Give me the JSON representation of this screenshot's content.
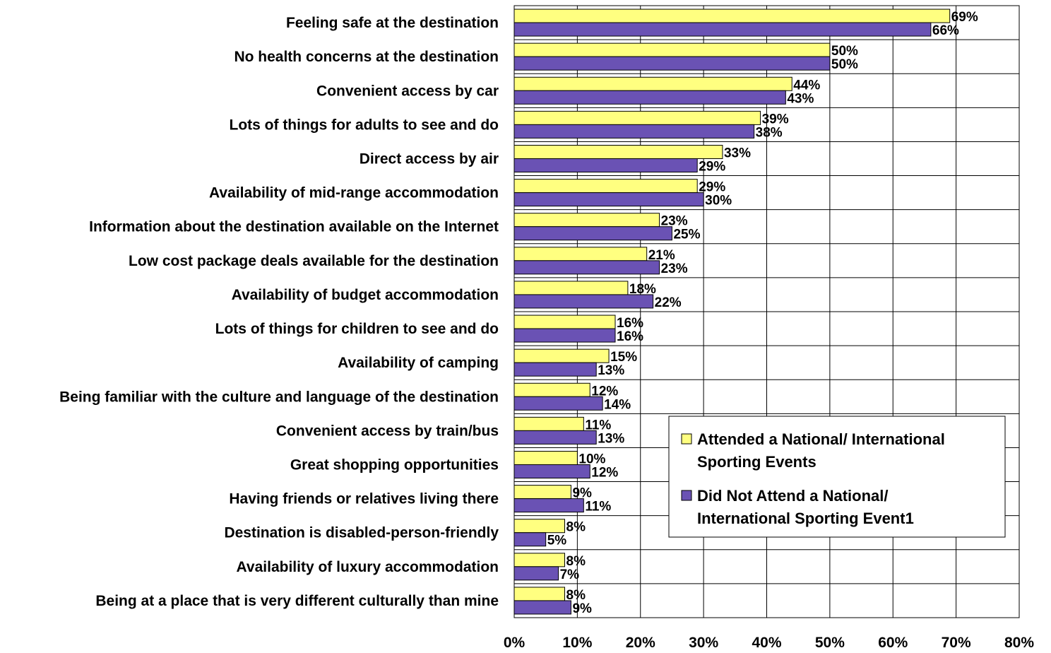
{
  "chart_data": {
    "type": "bar",
    "orientation": "horizontal",
    "title": "",
    "xlabel": "",
    "ylabel": "",
    "xlim": [
      0,
      80
    ],
    "x_ticks": [
      "0%",
      "10%",
      "20%",
      "30%",
      "40%",
      "50%",
      "60%",
      "70%",
      "80%"
    ],
    "grid": true,
    "legend_position": "lower-right",
    "categories": [
      "Feeling safe at the destination",
      "No health concerns at the destination",
      "Convenient access by car",
      "Lots of things for adults to see and do",
      "Direct access by air",
      "Availability of mid-range accommodation",
      "Information about the destination available on the Internet",
      "Low cost package deals available for the destination",
      "Availability of budget accommodation",
      "Lots of things for children to see and do",
      "Availability of camping",
      "Being familiar with the culture and language of the destination",
      "Convenient access by train/bus",
      "Great shopping opportunities",
      "Having friends or relatives living there",
      "Destination is disabled-person-friendly",
      "Availability of luxury accommodation",
      "Being at a place that is very different culturally than mine"
    ],
    "series": [
      {
        "name": "Attended a National/ International Sporting Events",
        "legend_lines": [
          "Attended a National/ International",
          "Sporting Events"
        ],
        "color": "#FFFF80",
        "values": [
          69,
          50,
          44,
          39,
          33,
          29,
          23,
          21,
          18,
          16,
          15,
          12,
          11,
          10,
          9,
          8,
          8,
          8
        ],
        "labels": [
          "69%",
          "50%",
          "44%",
          "39%",
          "33%",
          "29%",
          "23%",
          "21%",
          "18%",
          "16%",
          "15%",
          "12%",
          "11%",
          "10%",
          "9%",
          "8%",
          "8%",
          "8%"
        ]
      },
      {
        "name": "Did Not Attend a National/ International Sporting Event1",
        "legend_lines": [
          "Did Not Attend a National/",
          "International Sporting Event1"
        ],
        "color": "#6A52B4",
        "values": [
          66,
          50,
          43,
          38,
          29,
          30,
          25,
          23,
          22,
          16,
          13,
          14,
          13,
          12,
          11,
          5,
          7,
          9
        ],
        "labels": [
          "66%",
          "50%",
          "43%",
          "38%",
          "29%",
          "30%",
          "25%",
          "23%",
          "22%",
          "16%",
          "13%",
          "14%",
          "13%",
          "12%",
          "11%",
          "5%",
          "7%",
          "9%"
        ]
      }
    ]
  }
}
